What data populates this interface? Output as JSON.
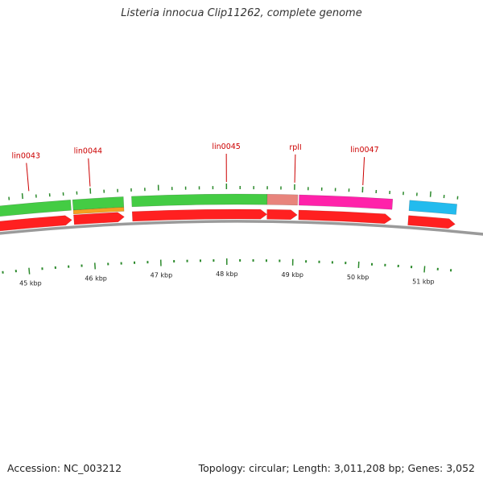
{
  "title": "Listeria innocua Clip11262, complete genome",
  "footer": {
    "accession": "Accession: NC_003212",
    "summary": "Topology: circular; Length: 3,011,208 bp; Genes: 3,052"
  },
  "colors": {
    "backbone": "#9a9a9a",
    "tick": "#2c8a2c",
    "dot": "#2c8a2c",
    "gene_label": "#cc0000",
    "cds": "#ff2020",
    "green": "#44cc44",
    "orange": "#f5a020",
    "salmon": "#e8847c",
    "magenta": "#ff22aa",
    "cyan": "#22bbee"
  },
  "scale": {
    "start_kbp": 44.4,
    "end_kbp": 51.4,
    "unit": "kbp",
    "labels": [
      "45 kbp",
      "46 kbp",
      "47 kbp",
      "48 kbp",
      "49 kbp",
      "50 kbp",
      "51 kbp"
    ]
  },
  "labeled_genes": [
    {
      "name": "lin0043",
      "position_kbp": 45.1
    },
    {
      "name": "lin0044",
      "position_kbp": 46.0
    },
    {
      "name": "lin0045",
      "position_kbp": 48.0
    },
    {
      "name": "rplI",
      "position_kbp": 49.0
    },
    {
      "name": "lin0047",
      "position_kbp": 50.0
    }
  ],
  "feature_track": [
    {
      "start_kbp": 44.4,
      "end_kbp": 45.7,
      "color": "green"
    },
    {
      "start_kbp": 45.73,
      "end_kbp": 46.48,
      "color": "green"
    },
    {
      "start_kbp": 46.6,
      "end_kbp": 48.6,
      "color": "green"
    },
    {
      "start_kbp": 48.6,
      "end_kbp": 49.05,
      "color": "salmon"
    },
    {
      "start_kbp": 49.07,
      "end_kbp": 50.45,
      "color": "magenta"
    },
    {
      "start_kbp": 50.7,
      "end_kbp": 51.4,
      "color": "cyan"
    }
  ],
  "sub_track": [
    {
      "start_kbp": 45.73,
      "end_kbp": 46.48,
      "color": "orange"
    }
  ],
  "cds_track": [
    {
      "start_kbp": 44.4,
      "end_kbp": 45.7,
      "color": "cds"
    },
    {
      "start_kbp": 45.73,
      "end_kbp": 46.48,
      "color": "cds"
    },
    {
      "start_kbp": 46.6,
      "end_kbp": 48.6,
      "color": "cds"
    },
    {
      "start_kbp": 48.6,
      "end_kbp": 49.05,
      "color": "cds"
    },
    {
      "start_kbp": 49.07,
      "end_kbp": 50.45,
      "color": "cds"
    },
    {
      "start_kbp": 50.7,
      "end_kbp": 51.4,
      "color": "cds"
    }
  ]
}
